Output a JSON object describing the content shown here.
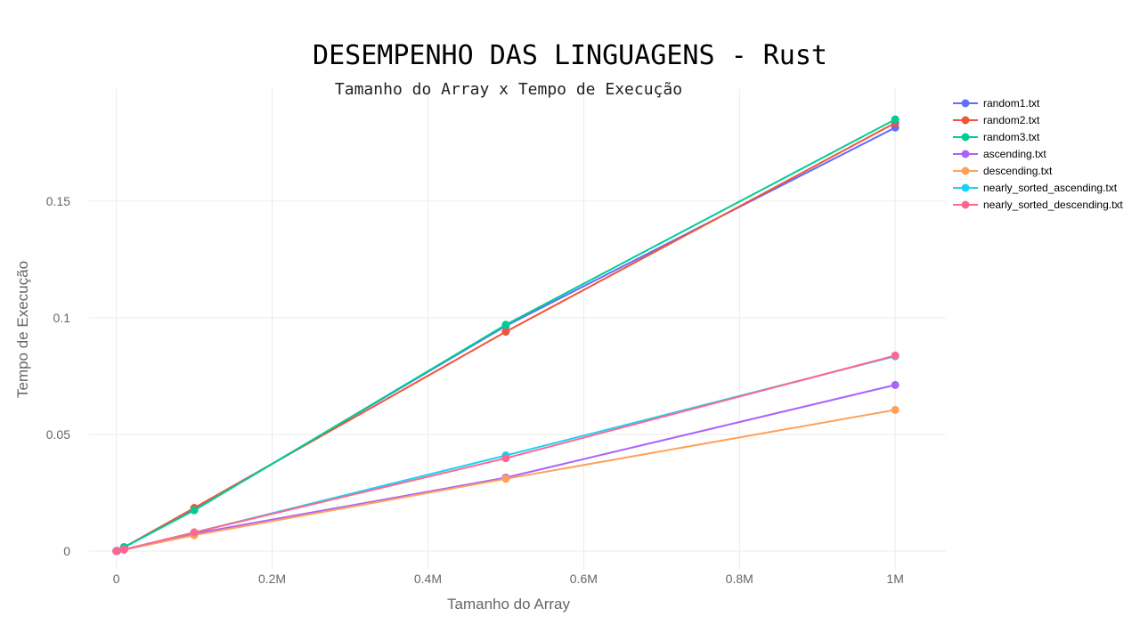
{
  "chart_data": {
    "type": "line",
    "title": "DESEMPENHO DAS LINGUAGENS - Rust",
    "subtitle": "Tamanho do Array x Tempo de Execução",
    "xlabel": "Tamanho do Array",
    "ylabel": "Tempo de Execução",
    "xlim": [
      -35000,
      1065000
    ],
    "ylim": [
      -0.008,
      0.198
    ],
    "x_ticks": [
      0,
      200000,
      400000,
      600000,
      800000,
      1000000
    ],
    "x_tick_labels": [
      "0",
      "0.2M",
      "0.4M",
      "0.6M",
      "0.8M",
      "1M"
    ],
    "y_ticks": [
      0,
      0.05,
      0.1,
      0.15
    ],
    "y_tick_labels": [
      "0",
      "0.05",
      "0.1",
      "0.15"
    ],
    "grid": true,
    "legend_position": "top-right",
    "x": [
      100,
      1000,
      10000,
      100000,
      500000,
      1000000
    ],
    "series": [
      {
        "name": "random1.txt",
        "color": "#636efa",
        "values": [
          1e-05,
          0.0001,
          0.0017,
          0.0177,
          0.0965,
          0.1815
        ]
      },
      {
        "name": "random2.txt",
        "color": "#ef553b",
        "values": [
          1e-05,
          0.0001,
          0.0017,
          0.0185,
          0.094,
          0.1835
        ]
      },
      {
        "name": "random3.txt",
        "color": "#00cc96",
        "values": [
          1e-05,
          0.0001,
          0.0017,
          0.0175,
          0.097,
          0.185
        ]
      },
      {
        "name": "ascending.txt",
        "color": "#ab63fa",
        "values": [
          1e-05,
          0.0001,
          0.0007,
          0.0075,
          0.0315,
          0.0712
        ]
      },
      {
        "name": "descending.txt",
        "color": "#ffa15a",
        "values": [
          1e-05,
          0.0001,
          0.0006,
          0.0068,
          0.031,
          0.0605
        ]
      },
      {
        "name": "nearly_sorted_ascending.txt",
        "color": "#19d3f3",
        "values": [
          1e-05,
          0.0001,
          0.0007,
          0.008,
          0.041,
          0.0835
        ]
      },
      {
        "name": "nearly_sorted_descending.txt",
        "color": "#ff6692",
        "values": [
          1e-05,
          0.0001,
          0.0007,
          0.008,
          0.0398,
          0.0838
        ]
      }
    ]
  }
}
